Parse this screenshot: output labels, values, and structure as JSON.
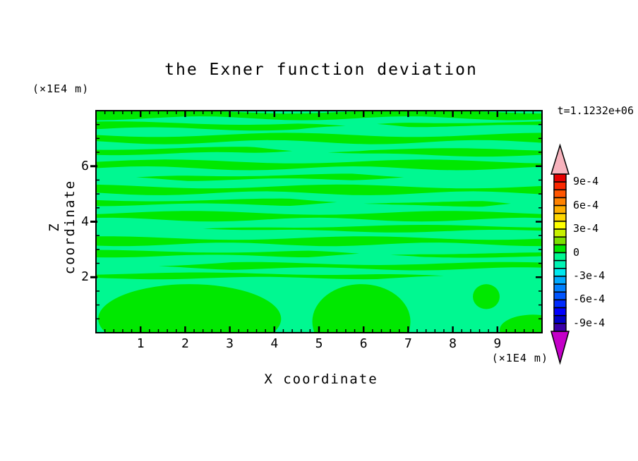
{
  "title": "the Exner function deviation",
  "time_label": "t=1.1232e+06",
  "x_axis": {
    "label": "X coordinate",
    "unit_label": "(×1E4 m)",
    "range": [
      0,
      10
    ],
    "major_tick_values": [
      1,
      2,
      3,
      4,
      5,
      6,
      7,
      8,
      9
    ],
    "major_tick_labels": [
      "1",
      "2",
      "3",
      "4",
      "5",
      "6",
      "7",
      "8",
      "9"
    ],
    "minor_step": 0.2
  },
  "y_axis": {
    "label": "Z coordinate",
    "unit_label": "(×1E4 m)",
    "range": [
      0,
      8
    ],
    "major_tick_values": [
      2,
      4,
      6
    ],
    "major_tick_labels": [
      "2",
      "4",
      "6"
    ],
    "minor_step": 0.5
  },
  "colorbar": {
    "over_color": "#f7b3bd",
    "under_color": "#c400c8",
    "cell_colors_top_to_bottom": [
      "#e60000",
      "#fb2800",
      "#ff5500",
      "#ff8200",
      "#ffaf00",
      "#ffd700",
      "#ffff00",
      "#c8f000",
      "#7ce000",
      "#00e800",
      "#00f891",
      "#00f4b4",
      "#00e8ee",
      "#00aaff",
      "#0080ff",
      "#0055ff",
      "#002bff",
      "#0000ff",
      "#0000c8",
      "#3a00a8"
    ],
    "cell_bounds_top_to_bottom": [
      0.001,
      0.0009,
      0.0008,
      0.0007,
      0.0006,
      0.0005,
      0.0004,
      0.0003,
      0.0002,
      0.0001,
      0,
      -0.0001,
      -0.0002,
      -0.0003,
      -0.0004,
      -0.0005,
      -0.0006,
      -0.0007,
      -0.0008,
      -0.0009,
      -0.001
    ],
    "labels": [
      {
        "text": "9e-4",
        "boundary_index": 1
      },
      {
        "text": "6e-4",
        "boundary_index": 4
      },
      {
        "text": "3e-4",
        "boundary_index": 7
      },
      {
        "text": "0",
        "boundary_index": 10
      },
      {
        "text": "-3e-4",
        "boundary_index": 13
      },
      {
        "text": "-6e-4",
        "boundary_index": 16
      },
      {
        "text": "-9e-4",
        "boundary_index": 19
      }
    ]
  },
  "chart_data": {
    "type": "heatmap",
    "title": "the Exner function deviation",
    "xlabel": "X coordinate (×1E4 m)",
    "ylabel": "Z coordinate (×1E4 m)",
    "x_range": [
      0,
      10
    ],
    "z_range": [
      0,
      8
    ],
    "time": "t=1.1232e+06",
    "contour_interval": 0.0001,
    "field_range_shown": [
      -0.0001,
      0.0001
    ],
    "negative_band_color": "#00f891",
    "positive_band_color": "#00e800",
    "description": "Field is everywhere within ±1e-4: background band (-1e-4..0) in spring green with wavy horizontal positive streaks (0..+1e-4) in green, plus large positive lobes below z≈1.8",
    "positive_streaks": [
      [
        7.85,
        0.0,
        10.0,
        0.14,
        0.0
      ],
      [
        7.45,
        0.0,
        5.6,
        0.12,
        1.1
      ],
      [
        7.52,
        6.3,
        10.0,
        0.08,
        2.3
      ],
      [
        7.0,
        0.0,
        10.0,
        0.15,
        3.2
      ],
      [
        6.55,
        0.0,
        4.4,
        0.11,
        4.4
      ],
      [
        6.5,
        5.2,
        10.0,
        0.11,
        5.5
      ],
      [
        6.05,
        0.0,
        10.0,
        0.14,
        6.1
      ],
      [
        5.6,
        0.9,
        6.9,
        0.1,
        7.7
      ],
      [
        5.15,
        0.0,
        10.0,
        0.14,
        8.2
      ],
      [
        4.7,
        0.0,
        5.4,
        0.1,
        9.6
      ],
      [
        4.65,
        6.0,
        9.3,
        0.08,
        10.3
      ],
      [
        4.2,
        0.0,
        10.0,
        0.14,
        11.8
      ],
      [
        3.75,
        2.4,
        10.0,
        0.1,
        12.4
      ],
      [
        3.3,
        0.0,
        10.0,
        0.13,
        13.9
      ],
      [
        2.85,
        0.0,
        5.9,
        0.1,
        14.2
      ],
      [
        2.8,
        6.6,
        10.0,
        0.07,
        15.5
      ],
      [
        2.4,
        1.4,
        10.0,
        0.11,
        16.7
      ],
      [
        2.05,
        0.0,
        7.8,
        0.09,
        17.9
      ]
    ],
    "positive_lobes": [
      [
        2.1,
        0.5,
        2.05,
        1.25
      ],
      [
        5.95,
        0.4,
        1.1,
        1.35
      ],
      [
        8.75,
        1.3,
        0.3,
        0.45
      ],
      [
        9.8,
        0.1,
        0.75,
        0.55
      ]
    ]
  }
}
